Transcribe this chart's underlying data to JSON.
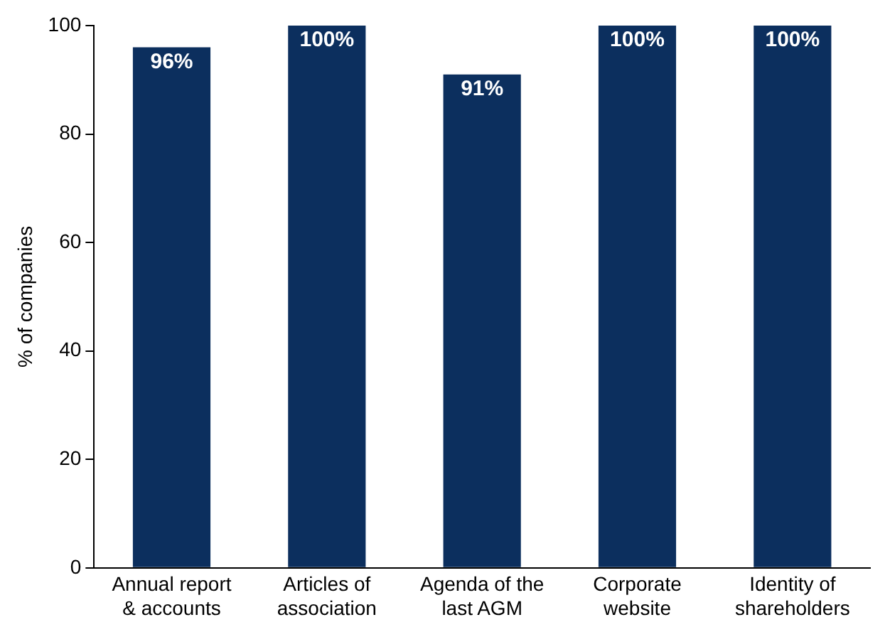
{
  "chart_data": {
    "type": "bar",
    "ylabel": "% of companies",
    "categories": [
      "Annual report\n& accounts",
      "Articles of\nassociation",
      "Agenda of the\nlast AGM",
      "Corporate\nwebsite",
      "Identity of\nshareholders"
    ],
    "values": [
      96,
      100,
      91,
      100,
      100
    ],
    "value_labels": [
      "96%",
      "100%",
      "91%",
      "100%",
      "100%"
    ],
    "color": "#0c2f5e",
    "ylim": [
      0,
      100
    ],
    "yticks": [
      0,
      20,
      40,
      60,
      80,
      100
    ],
    "grid": false,
    "legend": false
  }
}
